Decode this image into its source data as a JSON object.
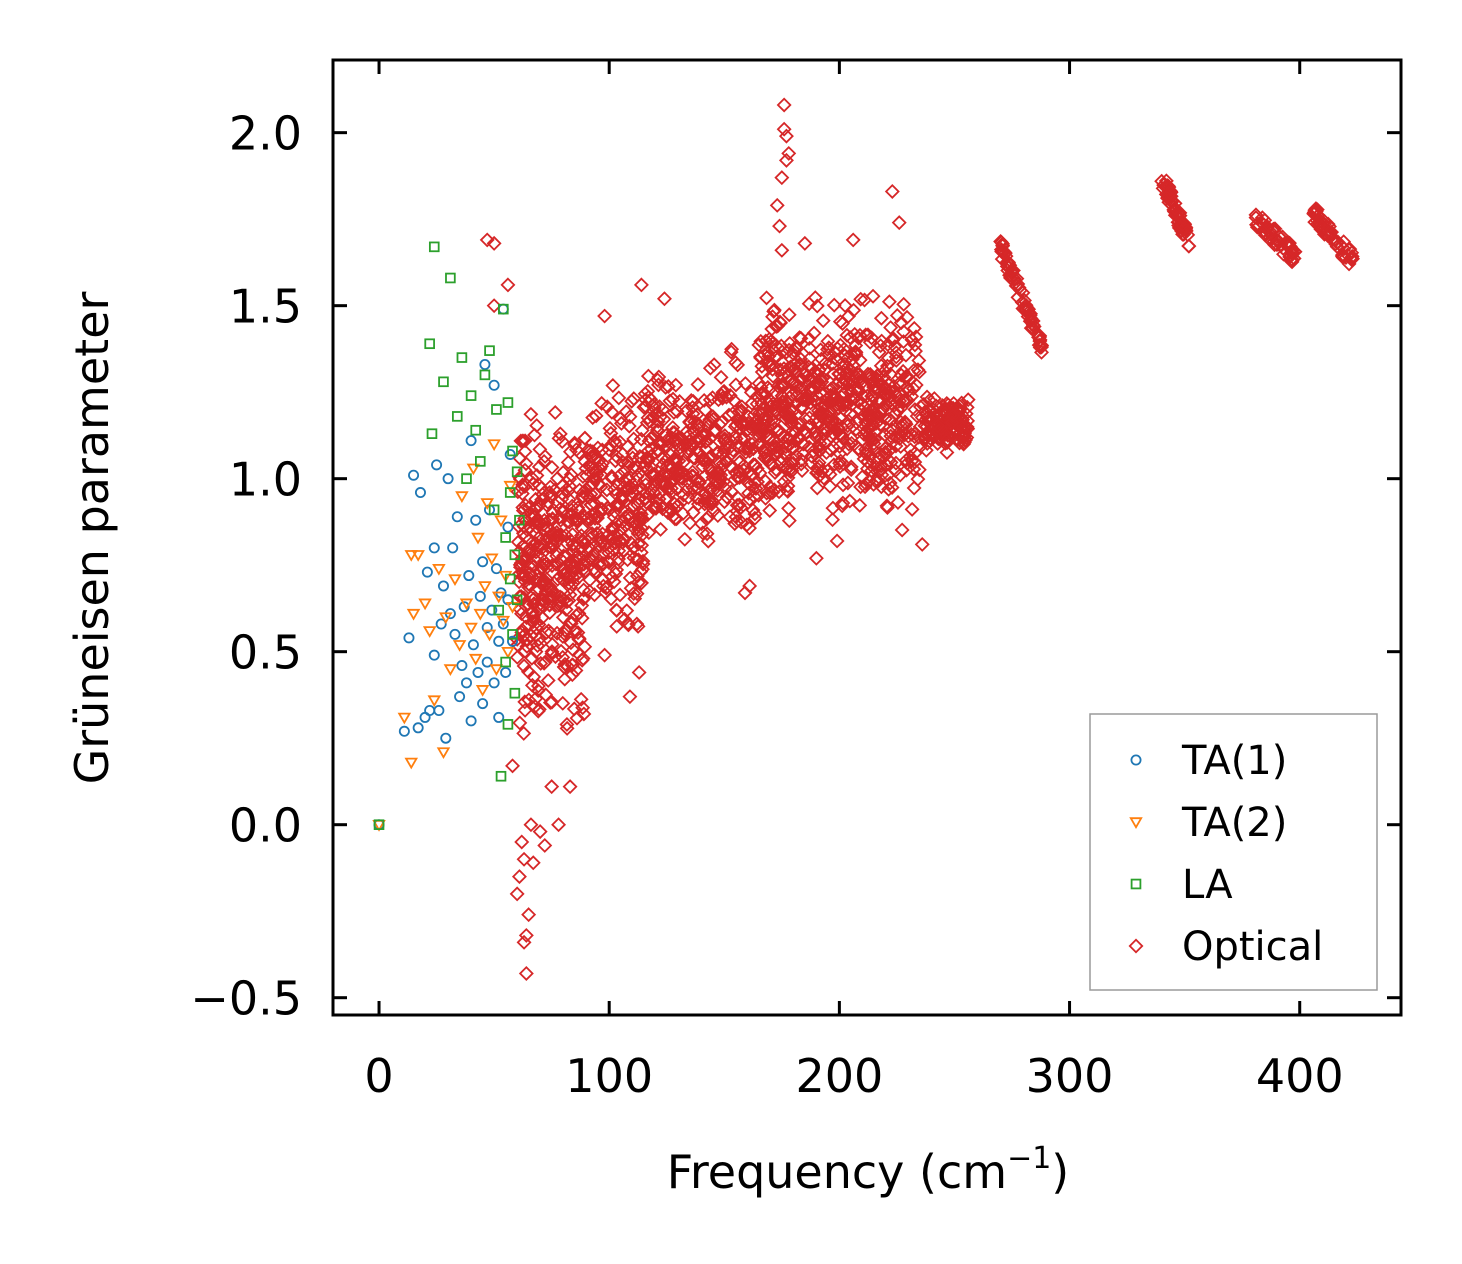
{
  "chart_data": {
    "type": "scatter",
    "title": "",
    "xlabel": "Frequency (cm",
    "xlabel_sup": "−1",
    "xlabel_close": ")",
    "ylabel": "Grüneisen parameter",
    "xlim": [
      -20,
      444
    ],
    "ylim": [
      -0.55,
      2.21
    ],
    "xticks": [
      0,
      100,
      200,
      300,
      400
    ],
    "xtick_labels": [
      "0",
      "100",
      "200",
      "300",
      "400"
    ],
    "yticks": [
      -0.5,
      0.0,
      0.5,
      1.0,
      1.5,
      2.0
    ],
    "ytick_labels": [
      "−0.5",
      "0.0",
      "0.5",
      "1.0",
      "1.5",
      "2.0"
    ],
    "grid": false,
    "legend_position": "lower-right",
    "series": [
      {
        "name": "TA(1)",
        "label": "TA(1)",
        "marker": "circle",
        "color": "#1f77b4",
        "points": [
          [
            0,
            0
          ],
          [
            11,
            0.27
          ],
          [
            13,
            0.54
          ],
          [
            15,
            1.01
          ],
          [
            17,
            0.28
          ],
          [
            18,
            0.96
          ],
          [
            20,
            0.31
          ],
          [
            21,
            0.73
          ],
          [
            22,
            0.33
          ],
          [
            24,
            0.8
          ],
          [
            24,
            0.49
          ],
          [
            25,
            1.04
          ],
          [
            26,
            0.33
          ],
          [
            27,
            0.58
          ],
          [
            28,
            0.69
          ],
          [
            29,
            0.25
          ],
          [
            30,
            1.0
          ],
          [
            31,
            0.61
          ],
          [
            32,
            0.8
          ],
          [
            33,
            0.55
          ],
          [
            34,
            0.89
          ],
          [
            35,
            0.37
          ],
          [
            36,
            0.46
          ],
          [
            37,
            0.63
          ],
          [
            38,
            0.41
          ],
          [
            39,
            0.72
          ],
          [
            40,
            1.11
          ],
          [
            40,
            0.3
          ],
          [
            41,
            0.52
          ],
          [
            42,
            0.88
          ],
          [
            43,
            0.44
          ],
          [
            44,
            0.66
          ],
          [
            45,
            0.76
          ],
          [
            45,
            0.35
          ],
          [
            46,
            1.33
          ],
          [
            47,
            0.57
          ],
          [
            47,
            0.47
          ],
          [
            48,
            0.91
          ],
          [
            49,
            0.62
          ],
          [
            50,
            0.41
          ],
          [
            50,
            1.27
          ],
          [
            51,
            0.74
          ],
          [
            52,
            0.53
          ],
          [
            52,
            0.31
          ],
          [
            53,
            0.67
          ],
          [
            54,
            1.49
          ],
          [
            54,
            0.58
          ],
          [
            55,
            0.44
          ],
          [
            56,
            0.86
          ],
          [
            56,
            0.65
          ],
          [
            57,
            1.07
          ],
          [
            58,
            0.53
          ]
        ]
      },
      {
        "name": "TA(2)",
        "label": "TA(2)",
        "marker": "triangle-down",
        "color": "#ff7f0e",
        "points": [
          [
            0,
            0
          ],
          [
            11,
            0.31
          ],
          [
            14,
            0.18
          ],
          [
            14,
            0.78
          ],
          [
            15,
            0.61
          ],
          [
            17,
            0.78
          ],
          [
            20,
            0.64
          ],
          [
            22,
            0.56
          ],
          [
            24,
            0.36
          ],
          [
            26,
            0.74
          ],
          [
            28,
            0.21
          ],
          [
            29,
            0.6
          ],
          [
            31,
            0.45
          ],
          [
            33,
            0.71
          ],
          [
            35,
            0.52
          ],
          [
            36,
            0.95
          ],
          [
            38,
            0.64
          ],
          [
            40,
            0.57
          ],
          [
            41,
            1.03
          ],
          [
            42,
            0.48
          ],
          [
            43,
            0.83
          ],
          [
            44,
            0.61
          ],
          [
            45,
            0.39
          ],
          [
            46,
            0.69
          ],
          [
            47,
            0.93
          ],
          [
            48,
            0.55
          ],
          [
            49,
            0.77
          ],
          [
            50,
            1.1
          ],
          [
            51,
            0.45
          ],
          [
            52,
            0.66
          ],
          [
            53,
            0.88
          ],
          [
            54,
            0.59
          ],
          [
            55,
            0.72
          ],
          [
            56,
            0.5
          ],
          [
            57,
            0.98
          ],
          [
            58,
            0.63
          ]
        ]
      },
      {
        "name": "LA",
        "label": "LA",
        "marker": "square",
        "color": "#2ca02c",
        "points": [
          [
            0,
            0
          ],
          [
            22,
            1.39
          ],
          [
            23,
            1.13
          ],
          [
            24,
            1.67
          ],
          [
            28,
            1.28
          ],
          [
            31,
            1.58
          ],
          [
            34,
            1.18
          ],
          [
            36,
            1.35
          ],
          [
            38,
            1.0
          ],
          [
            40,
            1.24
          ],
          [
            42,
            1.14
          ],
          [
            44,
            1.05
          ],
          [
            46,
            1.3
          ],
          [
            48,
            1.37
          ],
          [
            50,
            0.91
          ],
          [
            51,
            1.2
          ],
          [
            52,
            0.62
          ],
          [
            53,
            0.14
          ],
          [
            54,
            1.49
          ],
          [
            55,
            0.83
          ],
          [
            55,
            0.47
          ],
          [
            56,
            1.22
          ],
          [
            56,
            0.29
          ],
          [
            57,
            0.96
          ],
          [
            57,
            0.71
          ],
          [
            58,
            1.08
          ],
          [
            58,
            0.55
          ],
          [
            59,
            0.78
          ],
          [
            59,
            0.38
          ],
          [
            60,
            0.65
          ],
          [
            60,
            1.02
          ],
          [
            61,
            0.88
          ]
        ]
      },
      {
        "name": "Optical",
        "label": "Optical",
        "marker": "diamond",
        "color": "#d62728",
        "dense_clusters": [
          {
            "x_range": [
              60,
              72
            ],
            "y_range": [
              0.15,
              1.3
            ],
            "n": 180
          },
          {
            "x_range": [
              72,
              90
            ],
            "y_range": [
              0.2,
              1.32
            ],
            "n": 220
          },
          {
            "x_range": [
              90,
              115
            ],
            "y_range": [
              0.45,
              1.33
            ],
            "n": 240
          },
          {
            "x_range": [
              115,
              140
            ],
            "y_range": [
              0.72,
              1.38
            ],
            "n": 200
          },
          {
            "x_range": [
              140,
              165
            ],
            "y_range": [
              0.72,
              1.42
            ],
            "n": 190
          },
          {
            "x_range": [
              165,
              180
            ],
            "y_range": [
              0.75,
              1.65
            ],
            "n": 180
          },
          {
            "x_range": [
              180,
              200
            ],
            "y_range": [
              0.83,
              1.6
            ],
            "n": 180
          },
          {
            "x_range": [
              200,
              215
            ],
            "y_range": [
              0.82,
              1.6
            ],
            "n": 160
          },
          {
            "x_range": [
              215,
              235
            ],
            "y_range": [
              0.8,
              1.62
            ],
            "n": 170
          },
          {
            "x_range": [
              235,
              256
            ],
            "y_range": [
              1.05,
              1.27
            ],
            "n": 140
          }
        ],
        "bands": [
          {
            "x_start": 270,
            "x_end": 288,
            "y_start": 1.67,
            "y_end": 1.38,
            "n": 70
          },
          {
            "x_start": 340,
            "x_end": 352,
            "y_start": 1.87,
            "y_end": 1.68,
            "n": 60
          },
          {
            "x_start": 380,
            "x_end": 398,
            "y_start": 1.76,
            "y_end": 1.64,
            "n": 55
          },
          {
            "x_start": 406,
            "x_end": 423,
            "y_start": 1.77,
            "y_end": 1.63,
            "n": 55
          }
        ],
        "points": [
          [
            47,
            1.69
          ],
          [
            50,
            1.68
          ],
          [
            50,
            1.5
          ],
          [
            56,
            1.56
          ],
          [
            62,
            -0.05
          ],
          [
            63,
            -0.1
          ],
          [
            63,
            -0.34
          ],
          [
            64,
            -0.43
          ],
          [
            64,
            -0.32
          ],
          [
            65,
            -0.26
          ],
          [
            66,
            0.0
          ],
          [
            67,
            -0.11
          ],
          [
            60,
            -0.2
          ],
          [
            61,
            -0.15
          ],
          [
            58,
            0.17
          ],
          [
            70,
            -0.02
          ],
          [
            72,
            -0.06
          ],
          [
            75,
            0.11
          ],
          [
            78,
            0.0
          ],
          [
            83,
            0.11
          ],
          [
            89,
            0.32
          ],
          [
            98,
            0.49
          ],
          [
            109,
            0.37
          ],
          [
            112,
            0.58
          ],
          [
            113,
            0.44
          ],
          [
            114,
            1.56
          ],
          [
            124,
            1.52
          ],
          [
            98,
            1.47
          ],
          [
            174,
            1.73
          ],
          [
            175,
            1.87
          ],
          [
            176,
            2.08
          ],
          [
            176,
            2.01
          ],
          [
            177,
            1.99
          ],
          [
            177,
            1.92
          ],
          [
            178,
            1.94
          ],
          [
            173,
            1.79
          ],
          [
            175,
            1.66
          ],
          [
            185,
            1.68
          ],
          [
            190,
            0.77
          ],
          [
            199,
            0.82
          ],
          [
            206,
            1.69
          ],
          [
            223,
            1.83
          ],
          [
            226,
            1.74
          ],
          [
            236,
            0.81
          ],
          [
            159,
            0.67
          ],
          [
            161,
            0.69
          ]
        ]
      }
    ]
  }
}
